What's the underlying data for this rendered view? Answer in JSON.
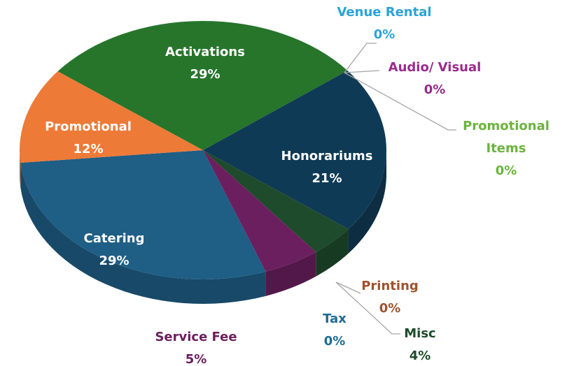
{
  "chart_data": {
    "type": "pie",
    "categories": [
      "Activations",
      "Venue Rental",
      "Audio/ Visual",
      "Promotional Items",
      "Honorariums",
      "Misc",
      "Printing",
      "Tax",
      "Service Fee",
      "Catering",
      "Promotional"
    ],
    "values": [
      29,
      0,
      0,
      0,
      21,
      4,
      0,
      0,
      5,
      29,
      12
    ],
    "value_labels": [
      "29%",
      "0%",
      "0%",
      "0%",
      "21%",
      "4%",
      "0%",
      "0%",
      "5%",
      "29%",
      "12%"
    ],
    "colors": [
      "#26752b",
      "#2aa3da",
      "#9a2b8c",
      "#6cb33f",
      "#0f3a55",
      "#1e4b2b",
      "#a0522d",
      "#1f6b93",
      "#6b1f5f",
      "#1f5e85",
      "#ee7a37"
    ],
    "label_colors": [
      "#ffffff",
      "#2aa3da",
      "#9a2b8c",
      "#6cb33f",
      "#ffffff",
      "#1e4b2b",
      "#a0522d",
      "#1f6b93",
      "#6b1f5f",
      "#ffffff",
      "#ffffff"
    ]
  }
}
